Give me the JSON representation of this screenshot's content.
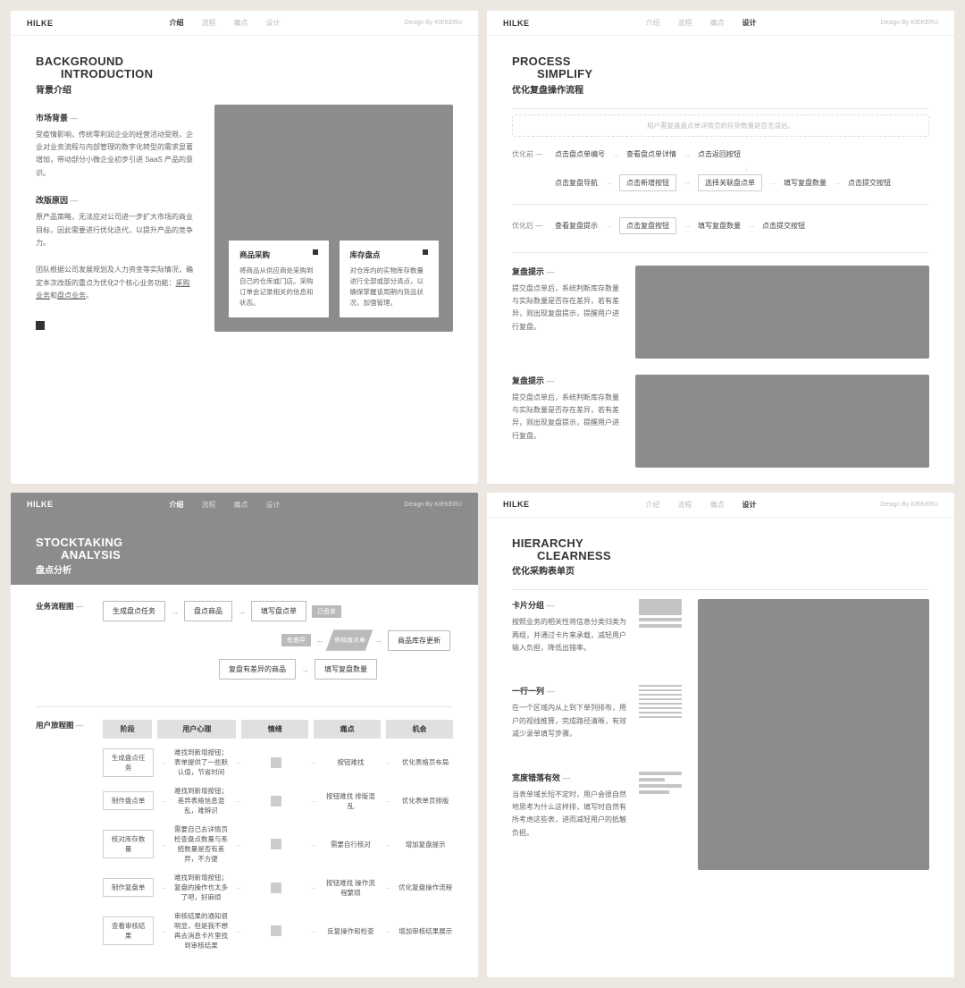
{
  "nav": {
    "logo": "HILKE",
    "links": [
      "介绍",
      "流程",
      "痛点",
      "设计"
    ],
    "credit": "Design By KIEKERU"
  },
  "navActive": {
    "A": "介绍",
    "B": "介绍",
    "C": "设计",
    "D": "设计"
  },
  "A": {
    "titleEn1": "BACKGROUND",
    "titleEn2": "INTRODUCTION",
    "titleCn": "背景介绍",
    "s1h": "市场背景",
    "s1p": "受疫情影响，传统零利润企业的经营活动受限，企业对业务流程与内部管理的数字化转型的需求显著增加，带动部分小微企业初步引进 SaaS 产品的意识。",
    "s2h": "改版原因",
    "s2p": "原产品策略，无法应对公司进一步扩大市场的商业目标，因此需要进行优化迭代，以提升产品的竞争力。",
    "s3p": "团队根据公司发展规划及人力资金等实际情况，确定本次改版的重点为优化2个核心业务功能：",
    "s3u1": "采购业务",
    "s3m": "和",
    "s3u2": "盘点业务",
    "s3end": "。",
    "c1h": "商品采购",
    "c1t": "将商品从供应商处采购到自己的仓库或门店。采购订单会记录相关的信息和状态。",
    "c2h": "库存盘点",
    "c2t": "对仓库内的实物库存数量进行全部或部分清点，以确保掌握该周期内货品状况，加强管理。"
  },
  "B": {
    "titleEn1": "STOCKTAKING",
    "titleEn2": "ANALYSIS",
    "titleCn": "盘点分析",
    "flowLabel": "业务流程图",
    "f1": "生成盘点任务",
    "f2": "盘点商品",
    "f3": "填写盘点单",
    "f3tag": "已盘单",
    "f4": "审核盘点单",
    "f5": "商品库存更新",
    "fDiamondTag": "有差异",
    "fB1": "复盘有差异的商品",
    "fB2": "填写复盘数量",
    "journeyLabel": "用户旅程图",
    "jh": [
      "阶段",
      "用户心理",
      "情绪",
      "痛点",
      "机会"
    ],
    "rows": [
      {
        "a": "生成盘点任务",
        "b": "难找到新增按钮；表单提供了一些默认值，节省时间",
        "d": "按钮难找",
        "e": "优化表格页布局"
      },
      {
        "a": "制作盘点单",
        "b": "难找到新增按钮；差异表格信息混乱，难辨识",
        "d": "按钮难找 排版混乱",
        "e": "优化表单页排版"
      },
      {
        "a": "核对库存数量",
        "b": "需要自己去详情页检查盘点数量与系统数量是否有差异，不方便",
        "d": "需要自行核对",
        "e": "增加复盘提示"
      },
      {
        "a": "制作复盘单",
        "b": "难找到新增按钮；复盘的操作也太多了吧，好麻烦",
        "d": "按钮难找 操作流程繁琐",
        "e": "优化复盘操作流程"
      },
      {
        "a": "查看审核结果",
        "b": "审核结果的通知很明显，但是我不想再去消息卡片里找到审核结果",
        "d": "反复操作和检查",
        "e": "增加审核结果展示"
      }
    ]
  },
  "C": {
    "titleEn1": "PROCESS",
    "titleEn2": "SIMPLIFY",
    "titleCn": "优化复盘操作流程",
    "dashed": "用户需复盘盘点单详情页的存货数量是否无误后。",
    "beforeLabel": "优化前",
    "b1": "点击盘点单编号",
    "b2": "查看盘点单详情",
    "b3": "点击返回按钮",
    "b4": "点击复盘导航",
    "b5": "点击新增按钮",
    "b6": "选择关联盘点单",
    "b7": "填写复盘数量",
    "b8": "点击提交按钮",
    "afterLabel": "优化后",
    "a1": "查看复盘提示",
    "a2": "点击复盘按钮",
    "a3": "填写复盘数量",
    "a4": "点击提交按钮",
    "tipH": "复盘提示",
    "tipT": "提交盘点单后，系统判断库存数量与实际数量是否存在差异，若有差异，则出现复盘提示，提醒用户进行复盘。"
  },
  "D": {
    "titleEn1": "HIERARCHY",
    "titleEn2": "CLEARNESS",
    "titleCn": "优化采购表单页",
    "i1h": "卡片分组",
    "i1t": "按照业务的相关性将信息分类归类为两组，并通过卡片来承载，减轻用户输入负担，降低出错率。",
    "i2h": "一行一列",
    "i2t": "在一个区域内从上到下单列排布，用户的视线推算，完成路径清晰，有效减少录单填写步骤。",
    "i3h": "宽度错落有效",
    "i3t": "当表单域长短不定时，用户会很自然地思考为什么这样排，填写时自然有所考虑这些表，进而减轻用户的抵触负担。"
  }
}
